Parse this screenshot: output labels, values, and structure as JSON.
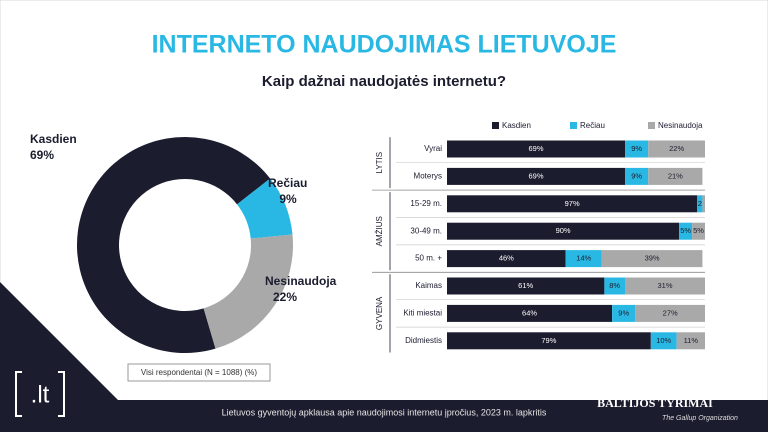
{
  "title": "INTERNETO NAUDOJIMAS LIETUVOJE",
  "subtitle": "Kaip dažnai naudojatės internetu?",
  "note": "Visi respondentai (N = 1088) (%)",
  "footer": "Lietuvos gyventojų apklausa apie naudojimosi internetu įpročius, 2023 m. lapkritis",
  "logo": ".lt",
  "brand": "BALTIJOS TYRIMAI",
  "brand_tagline": "The Gallup Organization",
  "chart_data": [
    {
      "type": "donut",
      "categories": [
        "Kasdien",
        "Rečiau",
        "Nesinaudoja"
      ],
      "values": [
        69,
        9,
        22
      ],
      "value_labels": [
        "69%",
        "9%",
        "22%"
      ],
      "colors": [
        "#1b1c2e",
        "#29b8e3",
        "#a9a9a9"
      ]
    },
    {
      "type": "stacked-barh",
      "categories": [
        "Vyrai",
        "Moterys",
        "15-29 m.",
        "30-49 m.",
        "50 m. +",
        "Kaimas",
        "Kiti miestai",
        "Didmiestis"
      ],
      "group_labels": [
        "LYTIS",
        "AMŽIUS",
        "GYVENA"
      ],
      "xlim": [
        0,
        100
      ],
      "legend": "top",
      "series": [
        {
          "name": "Kasdien",
          "color": "#1b1c2e",
          "values": [
            69,
            69,
            97,
            90,
            46,
            61,
            64,
            79
          ],
          "value_labels": [
            "69%",
            "69%",
            "97%",
            "90%",
            "46%",
            "61%",
            "64%",
            "79%"
          ]
        },
        {
          "name": "Rečiau",
          "color": "#29b8e3",
          "values": [
            9,
            9,
            2,
            5,
            14,
            8,
            9,
            10
          ],
          "value_labels": [
            "9%",
            "9%",
            "2",
            "5%",
            "14%",
            "8%",
            "9%",
            "10%"
          ]
        },
        {
          "name": "Nesinaudoja",
          "color": "#a9a9a9",
          "values": [
            22,
            21,
            1,
            5,
            39,
            31,
            27,
            11
          ],
          "value_labels": [
            "22%",
            "21%",
            null,
            "5%",
            "39%",
            "31%",
            "27%",
            "11%"
          ]
        }
      ]
    }
  ]
}
